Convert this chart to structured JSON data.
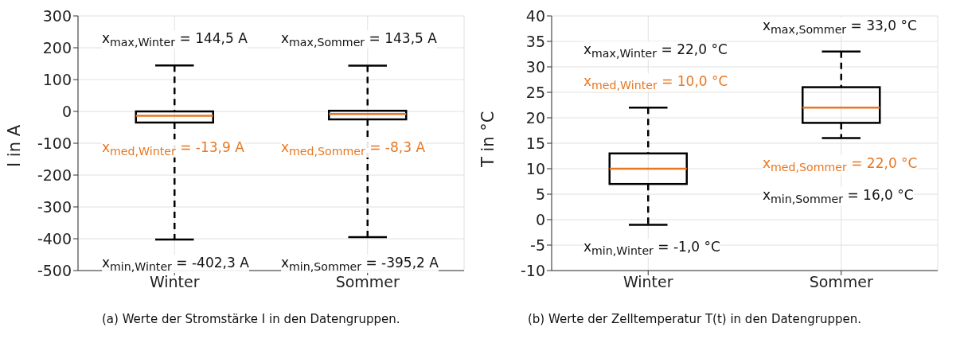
{
  "chart_data": [
    {
      "type": "box",
      "categories": [
        "Winter",
        "Sommer"
      ],
      "ylabel": "I in A",
      "ylim": [
        -500,
        300
      ],
      "yticks": [
        -500,
        -400,
        -300,
        -200,
        -100,
        0,
        100,
        200,
        300
      ],
      "grid": true,
      "color": "#000000",
      "boxes": [
        {
          "low": -402.3,
          "q1": -35,
          "median": -13.9,
          "q3": 0,
          "high": 144.5
        },
        {
          "low": -395.2,
          "q1": -25,
          "median": -8.3,
          "q3": 2,
          "high": 143.5
        }
      ],
      "annotations": [
        "x$_{max,Winter}$ = 144,5 A",
        "x$_{max,Sommer}$ = 143,5 A",
        "x$_{med,Winter}$ = -13,9 A",
        "x$_{med,Sommer}$ = -8,3 A",
        "x$_{min,Winter}$ = -402,3 A",
        "x$_{min,Sommer}$ = -395,2 A",
        "(a) Werte der Stromstärke I in den Datengruppen."
      ]
    },
    {
      "type": "box",
      "categories": [
        "Winter",
        "Sommer"
      ],
      "ylabel": "T in °C",
      "ylim": [
        -10,
        40
      ],
      "yticks": [
        -10,
        -5,
        0,
        5,
        10,
        15,
        20,
        25,
        30,
        35,
        40
      ],
      "grid": true,
      "color": "#000000",
      "boxes": [
        {
          "low": -1,
          "q1": 7,
          "median": 10,
          "q3": 13,
          "high": 22
        },
        {
          "low": 16,
          "q1": 19,
          "median": 22,
          "q3": 26,
          "high": 33
        }
      ],
      "annotations": [
        "x$_{max,Sommer}$ = 33,0 °C",
        "x$_{max,Winter}$ = 22,0 °C",
        "x$_{med,Winter}$ = 10,0 °C",
        "x$_{med,Sommer}$ = 22,0 °C",
        "x$_{min,Sommer}$ = 16,0 °C",
        "x$_{min,Winter}$ = -1,0 °C",
        "(b) Werte der Zelltemperatur T(t) in den Datengruppen."
      ]
    }
  ]
}
